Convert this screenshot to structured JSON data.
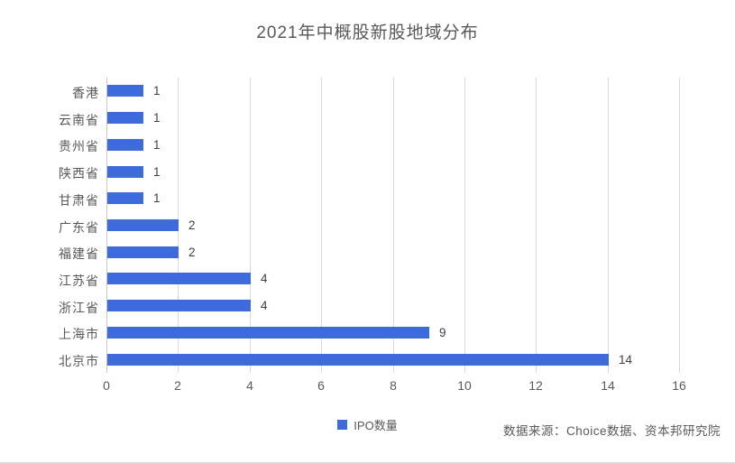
{
  "title": "2021年中概股新股地域分布",
  "legend": {
    "label": "IPO数量"
  },
  "source_note": "数据来源：Choice数据、资本邦研究院",
  "colors": {
    "bar": "#3d6bdb",
    "title_text": "#595959",
    "axis_text": "#595959",
    "data_label_text": "#404040",
    "gridline": "#d9d9d9"
  },
  "chart_data": {
    "type": "bar",
    "orientation": "horizontal",
    "title": "2021年中概股新股地域分布",
    "categories": [
      "香港",
      "云南省",
      "贵州省",
      "陕西省",
      "甘肃省",
      "广东省",
      "福建省",
      "江苏省",
      "浙江省",
      "上海市",
      "北京市"
    ],
    "series": [
      {
        "name": "IPO数量",
        "values": [
          1,
          1,
          1,
          1,
          1,
          2,
          2,
          4,
          4,
          9,
          14
        ]
      }
    ],
    "xlabel": "",
    "ylabel": "",
    "xlim": [
      0,
      16
    ],
    "x_ticks": [
      0,
      2,
      4,
      6,
      8,
      10,
      12,
      14,
      16
    ],
    "grid": true,
    "data_labels": true,
    "legend_position": "bottom",
    "source": "数据来源：Choice数据、资本邦研究院"
  }
}
